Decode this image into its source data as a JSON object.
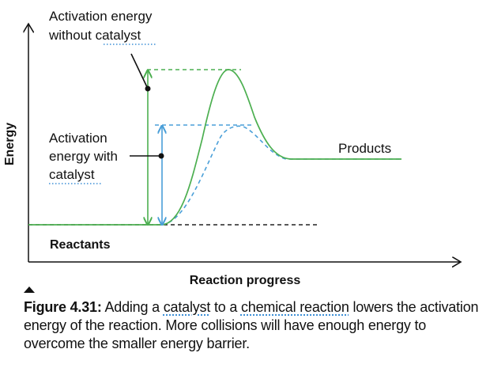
{
  "labels": {
    "activation_no_catalyst_line1": "Activation energy",
    "activation_no_catalyst_line2_prefix": "without ",
    "activation_no_catalyst_line2_term": "catalyst",
    "activation_with_catalyst_line1": "Activation",
    "activation_with_catalyst_line2": "energy with",
    "activation_with_catalyst_line3": "catalyst",
    "products": "Products",
    "reactants": "Reactants",
    "y_axis": "Energy",
    "x_axis": "Reaction progress"
  },
  "caption": {
    "figure_label": "Figure 4.31:",
    "text_1": " Adding a ",
    "term_1": "catalyst",
    "text_2": " to a ",
    "term_2": "chemical reaction",
    "text_3": " lowers the activation energy of the reaction. More collisions will have enough energy to overcome the smaller energy barrier."
  },
  "colors": {
    "uncatalyzed_curve": "#4caf50",
    "catalyzed_curve": "#4a9fd8",
    "reference_line": "#222222",
    "axis": "#111111"
  },
  "icons": {
    "collapse_toggle": "triangle-up-icon"
  }
}
